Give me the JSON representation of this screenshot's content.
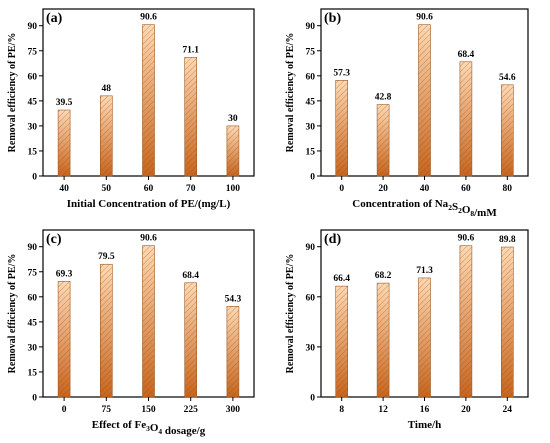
{
  "colors": {
    "bar_top": "#ffd9b3",
    "bar_bottom": "#c8651e",
    "bar_stroke": "#9a5a26",
    "axis": "#000000"
  },
  "chart_data": [
    {
      "type": "bar",
      "panel": "(a)",
      "categories": [
        "40",
        "50",
        "60",
        "70",
        "100"
      ],
      "values": [
        39.5,
        48,
        90.6,
        71.1,
        30
      ],
      "value_labels": [
        "39.5",
        "48",
        "90.6",
        "71.1",
        "30"
      ],
      "xlabel": "Initial Concentration of PE/(mg/L)",
      "ylabel": "Removal efficiency of PE/%",
      "ylim": [
        0,
        100
      ],
      "yticks": [
        0,
        15,
        30,
        45,
        60,
        75,
        90
      ],
      "grid": false,
      "fill": "hatched gradient (light orange to brown)"
    },
    {
      "type": "bar",
      "panel": "(b)",
      "categories": [
        "0",
        "20",
        "40",
        "60",
        "80"
      ],
      "values": [
        57.3,
        42.8,
        90.6,
        68.4,
        54.6
      ],
      "value_labels": [
        "57.3",
        "42.8",
        "90.6",
        "68.4",
        "54.6"
      ],
      "xlabel": "Concentration of Na2S2O8/mM",
      "ylabel": "Removal efficiency of PE/%",
      "ylim": [
        0,
        100
      ],
      "yticks": [
        0,
        15,
        30,
        45,
        60,
        75,
        90
      ],
      "grid": false,
      "fill": "hatched gradient (light orange to brown)"
    },
    {
      "type": "bar",
      "panel": "(c)",
      "categories": [
        "0",
        "75",
        "150",
        "225",
        "300"
      ],
      "values": [
        69.3,
        79.5,
        90.6,
        68.4,
        54.3
      ],
      "value_labels": [
        "69.3",
        "79.5",
        "90.6",
        "68.4",
        "54.3"
      ],
      "xlabel": "Effect of Fe3O4 dosage/g",
      "ylabel": "Removal efficiency of PE/%",
      "ylim": [
        0,
        100
      ],
      "yticks": [
        0,
        15,
        30,
        45,
        60,
        75,
        90
      ],
      "grid": false,
      "fill": "hatched gradient (light orange to brown)"
    },
    {
      "type": "bar",
      "panel": "(d)",
      "categories": [
        "8",
        "12",
        "16",
        "20",
        "24"
      ],
      "values": [
        66.4,
        68.2,
        71.3,
        90.6,
        89.8
      ],
      "value_labels": [
        "66.4",
        "68.2",
        "71.3",
        "90.6",
        "89.8"
      ],
      "xlabel": "Time/h",
      "ylabel": "Removal efficiency of PE/%",
      "ylim": [
        0,
        100
      ],
      "yticks": [
        0,
        30,
        60,
        90
      ],
      "grid": false,
      "fill": "hatched gradient (light orange to brown)"
    }
  ],
  "panels": [
    {
      "xlabel_parts": [
        {
          "t": "Initial Concentration of PE/(mg/L)",
          "s": ""
        }
      ]
    },
    {
      "xlabel_parts": [
        {
          "t": "Concentration of Na",
          "s": ""
        },
        {
          "t": "2",
          "s": "sub"
        },
        {
          "t": "S",
          "s": ""
        },
        {
          "t": "2",
          "s": "sub"
        },
        {
          "t": "O",
          "s": ""
        },
        {
          "t": "8",
          "s": "sub"
        },
        {
          "t": "/mM",
          "s": ""
        }
      ]
    },
    {
      "xlabel_parts": [
        {
          "t": "Effect of Fe",
          "s": ""
        },
        {
          "t": "3",
          "s": "sub"
        },
        {
          "t": "O",
          "s": ""
        },
        {
          "t": "4",
          "s": "sub"
        },
        {
          "t": " dosage/g",
          "s": ""
        }
      ]
    },
    {
      "xlabel_parts": [
        {
          "t": "Time/h",
          "s": ""
        }
      ]
    }
  ]
}
